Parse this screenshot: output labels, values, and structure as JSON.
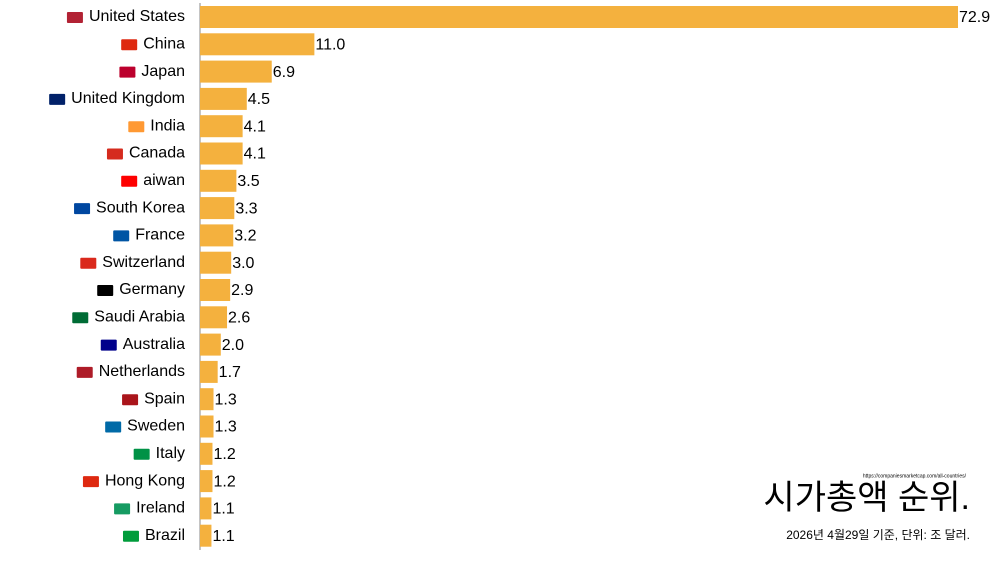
{
  "chart_data": {
    "type": "bar",
    "orientation": "horizontal",
    "title": "시가총액 순위.",
    "subtitle": "2026년 4월29일 기준, 단위: 조 달러.",
    "source": "https://companiesmarketcap.com/all-countries/",
    "color": "#f4b13e",
    "categories": [
      "United States",
      "China",
      "Japan",
      "United Kingdom",
      "India",
      "Canada",
      "aiwan",
      "South Korea",
      "France",
      "Switzerland",
      "Germany",
      "Saudi Arabia",
      "Australia",
      "Netherlands",
      "Spain",
      "Sweden",
      "Italy",
      "Hong Kong",
      "Ireland",
      "Brazil"
    ],
    "values": [
      72.9,
      11.0,
      6.9,
      4.5,
      4.1,
      4.1,
      3.5,
      3.3,
      3.2,
      3.0,
      2.9,
      2.6,
      2.0,
      1.7,
      1.3,
      1.3,
      1.2,
      1.2,
      1.1,
      1.1
    ],
    "value_labels": [
      "72.9",
      "11.0",
      "6.9",
      "4.5",
      "4.1",
      "4.1",
      "3.5",
      "3.3",
      "3.2",
      "3.0",
      "2.9",
      "2.6",
      "2.0",
      "1.7",
      "1.3",
      "1.3",
      "1.2",
      "1.2",
      "1.1",
      "1.1"
    ]
  }
}
